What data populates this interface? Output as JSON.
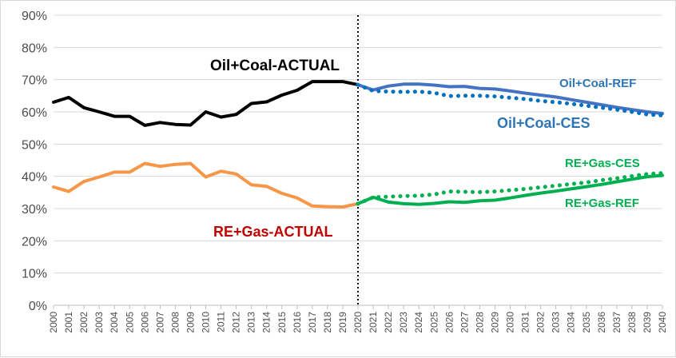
{
  "chart_data": {
    "type": "line",
    "ylim": [
      0,
      90
    ],
    "yticks": [
      0,
      10,
      20,
      30,
      40,
      50,
      60,
      70,
      80,
      90
    ],
    "ytick_labels": [
      "0%",
      "10%",
      "20%",
      "30%",
      "40%",
      "50%",
      "60%",
      "70%",
      "80%",
      "90%"
    ],
    "x": [
      2000,
      2001,
      2002,
      2003,
      2004,
      2005,
      2006,
      2007,
      2008,
      2009,
      2010,
      2011,
      2012,
      2013,
      2014,
      2015,
      2016,
      2017,
      2018,
      2019,
      2020,
      2021,
      2022,
      2023,
      2024,
      2025,
      2026,
      2027,
      2028,
      2029,
      2030,
      2031,
      2032,
      2033,
      2034,
      2035,
      2036,
      2037,
      2038,
      2039,
      2040
    ],
    "xtick_labels": [
      "2000",
      "2001",
      "2002",
      "2003",
      "2004",
      "2005",
      "2006",
      "2007",
      "2008",
      "2009",
      "2010",
      "2011",
      "2012",
      "2013",
      "2014",
      "2015",
      "2016",
      "2017",
      "2018",
      "2019",
      "2020",
      "2021",
      "2022",
      "2023",
      "2024",
      "2025",
      "2026",
      "2027",
      "2028",
      "2029",
      "2030",
      "2031",
      "2032",
      "2033",
      "2034",
      "2035",
      "2036",
      "2037",
      "2038",
      "2039",
      "2040"
    ],
    "grid": true,
    "divider_x": 2020,
    "series": [
      {
        "name": "Oil+Coal-ACTUAL",
        "color": "#000000",
        "label_color": "#000000",
        "style": "solid",
        "x": [
          2000,
          2001,
          2002,
          2003,
          2004,
          2005,
          2006,
          2007,
          2008,
          2009,
          2010,
          2011,
          2012,
          2013,
          2014,
          2015,
          2016,
          2017,
          2018,
          2019,
          2020
        ],
        "values": [
          63,
          64.5,
          61.3,
          60,
          58.6,
          58.6,
          55.8,
          56.7,
          56.1,
          55.9,
          60,
          58.4,
          59.2,
          62.6,
          63.1,
          65.2,
          66.7,
          69.4,
          69.4,
          69.4,
          68.4
        ]
      },
      {
        "name": "Oil+Coal-REF",
        "color": "#4472c4",
        "label_color": "#2e75b6",
        "style": "solid",
        "x": [
          2020,
          2021,
          2022,
          2023,
          2024,
          2025,
          2026,
          2027,
          2028,
          2029,
          2030,
          2031,
          2032,
          2033,
          2034,
          2035,
          2036,
          2037,
          2038,
          2039,
          2040
        ],
        "values": [
          68.4,
          66.8,
          68,
          68.6,
          68.6,
          68.3,
          67.8,
          67.9,
          67.3,
          67.1,
          66.5,
          65.8,
          65.2,
          64.6,
          63.8,
          63,
          62.2,
          61.4,
          60.7,
          60,
          59.5
        ]
      },
      {
        "name": "Oil+Coal-CES",
        "color": "#0070c0",
        "label_color": "#2e75b6",
        "style": "dotted",
        "x": [
          2020,
          2021,
          2022,
          2023,
          2024,
          2025,
          2026,
          2027,
          2028,
          2029,
          2030,
          2031,
          2032,
          2033,
          2034,
          2035,
          2036,
          2037,
          2038,
          2039,
          2040
        ],
        "values": [
          68.4,
          66.5,
          66.3,
          66.2,
          66.3,
          65.9,
          64.9,
          65,
          65,
          64.8,
          64.4,
          64,
          63.4,
          63,
          62.5,
          61.9,
          61.3,
          60.7,
          60,
          59.2,
          58.9
        ]
      },
      {
        "name": "RE+Gas-ACTUAL",
        "color": "#f79646",
        "label_color": "#c00000",
        "style": "solid",
        "x": [
          2000,
          2001,
          2002,
          2003,
          2004,
          2005,
          2006,
          2007,
          2008,
          2009,
          2010,
          2011,
          2012,
          2013,
          2014,
          2015,
          2016,
          2017,
          2018,
          2019,
          2020
        ],
        "values": [
          36.7,
          35.3,
          38.4,
          39.8,
          41.3,
          41.3,
          44,
          43.1,
          43.7,
          44,
          39.8,
          41.6,
          40.7,
          37.4,
          36.9,
          34.7,
          33.3,
          30.8,
          30.6,
          30.5,
          31.5
        ]
      },
      {
        "name": "RE+Gas-REF",
        "color": "#00b050",
        "label_color": "#00b050",
        "style": "solid",
        "x": [
          2020,
          2021,
          2022,
          2023,
          2024,
          2025,
          2026,
          2027,
          2028,
          2029,
          2030,
          2031,
          2032,
          2033,
          2034,
          2035,
          2036,
          2037,
          2038,
          2039,
          2040
        ],
        "values": [
          31.5,
          33.5,
          32,
          31.5,
          31.3,
          31.6,
          32.1,
          31.9,
          32.4,
          32.6,
          33.3,
          34.1,
          34.8,
          35.4,
          36.1,
          36.8,
          37.5,
          38.3,
          39.1,
          39.9,
          40.3
        ]
      },
      {
        "name": "RE+Gas-CES",
        "color": "#00b050",
        "label_color": "#00b050",
        "style": "dotted",
        "x": [
          2020,
          2021,
          2022,
          2023,
          2024,
          2025,
          2026,
          2027,
          2028,
          2029,
          2030,
          2031,
          2032,
          2033,
          2034,
          2035,
          2036,
          2037,
          2038,
          2039,
          2040
        ],
        "values": [
          31.5,
          33.5,
          33.7,
          33.9,
          34,
          34.4,
          35.3,
          35.2,
          35.1,
          35.3,
          35.7,
          36.1,
          36.6,
          37.1,
          37.6,
          38.1,
          38.8,
          39.4,
          40.1,
          40.7,
          41
        ]
      }
    ]
  }
}
